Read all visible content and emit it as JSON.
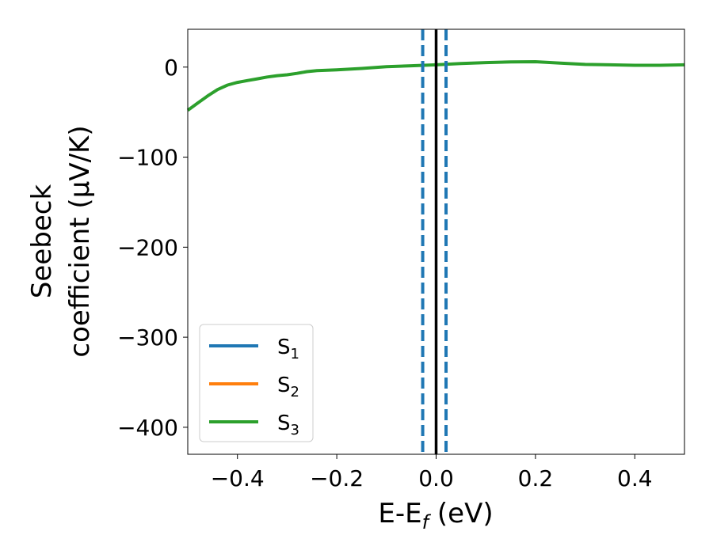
{
  "chart_data": {
    "type": "line",
    "xlabel": {
      "main": "E-E",
      "sub": "f",
      "unit": " (eV)"
    },
    "ylabel": {
      "line1": "Seebeck",
      "line2": "coefficient  (μV/K)"
    },
    "xlim": [
      -0.5,
      0.5
    ],
    "ylim": [
      -430,
      42
    ],
    "xticks": [
      -0.4,
      -0.2,
      0.0,
      0.2,
      0.4
    ],
    "xtick_labels": [
      "−0.4",
      "−0.2",
      "0.0",
      "0.2",
      "0.4"
    ],
    "yticks": [
      0,
      -100,
      -200,
      -300,
      -400
    ],
    "ytick_labels": [
      "0",
      "−100",
      "−200",
      "−300",
      "−400"
    ],
    "grid": false,
    "legend_position": "lower-left",
    "series": [
      {
        "name": "S",
        "sub": "1",
        "color": "#1f77b4",
        "x": [],
        "y": []
      },
      {
        "name": "S",
        "sub": "2",
        "color": "#ff7f0e",
        "x": [],
        "y": []
      },
      {
        "name": "S",
        "sub": "3",
        "color": "#2ca02c",
        "x": [
          -0.5,
          -0.48,
          -0.46,
          -0.44,
          -0.42,
          -0.4,
          -0.38,
          -0.36,
          -0.34,
          -0.32,
          -0.3,
          -0.28,
          -0.26,
          -0.24,
          -0.22,
          -0.2,
          -0.15,
          -0.1,
          -0.05,
          0.0,
          0.05,
          0.1,
          0.15,
          0.2,
          0.25,
          0.3,
          0.35,
          0.4,
          0.45,
          0.5
        ],
        "y": [
          -48,
          -40,
          -32,
          -25,
          -20,
          -17,
          -15,
          -13,
          -11,
          -9.5,
          -8.5,
          -7,
          -5,
          -4,
          -3.5,
          -3,
          -1.5,
          0.5,
          1.5,
          2.5,
          4,
          5,
          5.8,
          6,
          4.5,
          3,
          2.5,
          2,
          2,
          2.5
        ]
      }
    ],
    "vlines": [
      {
        "x": -0.027,
        "color": "#1f77b4",
        "style": "dashed"
      },
      {
        "x": 0.0,
        "color": "#000000",
        "style": "solid"
      },
      {
        "x": 0.02,
        "color": "#1f77b4",
        "style": "dashed"
      }
    ]
  }
}
